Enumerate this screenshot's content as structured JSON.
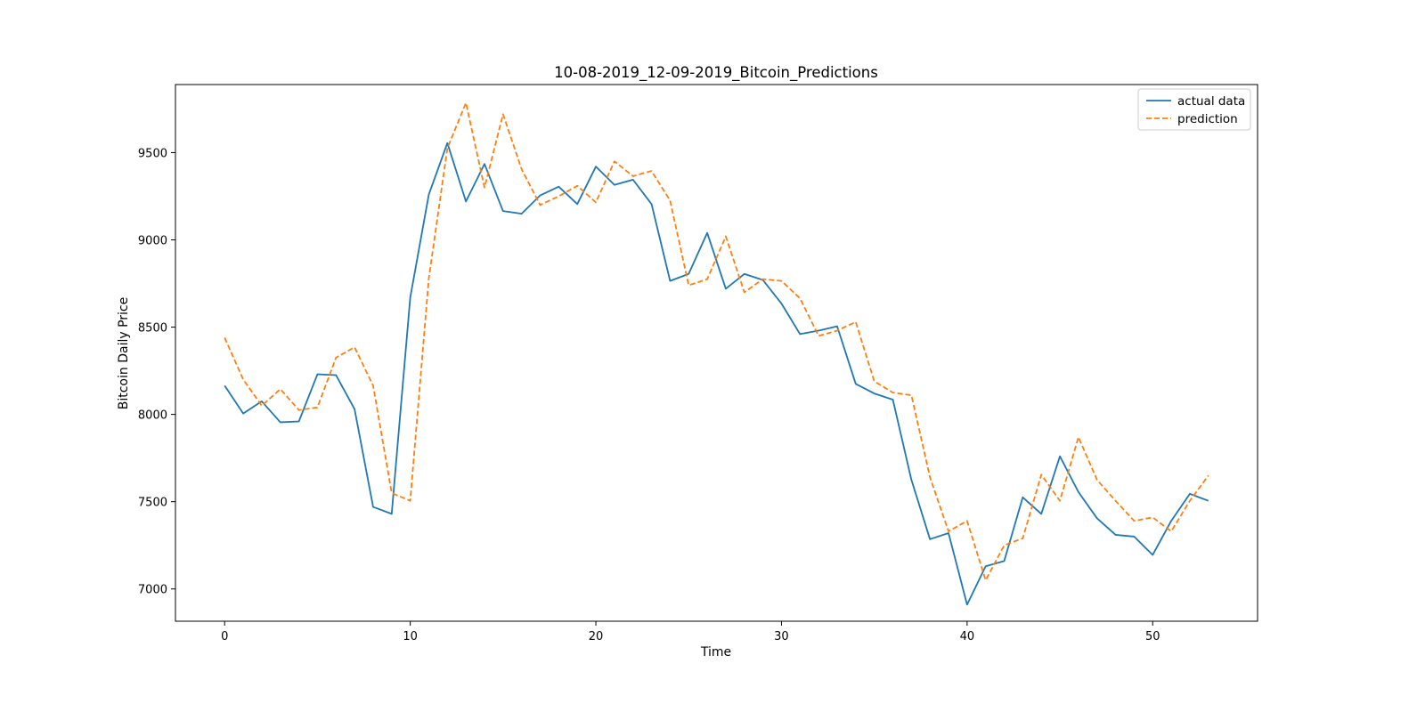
{
  "chart_data": {
    "type": "line",
    "title": "10-08-2019_12-09-2019_Bitcoin_Predictions",
    "xlabel": "Time",
    "ylabel": "Bitcoin Daily Price",
    "xlim": [
      -2.65,
      55.65
    ],
    "ylim": [
      6815,
      9890
    ],
    "xticks": [
      0,
      10,
      20,
      30,
      40,
      50
    ],
    "yticks": [
      7000,
      7500,
      8000,
      8500,
      9000,
      9500
    ],
    "grid": false,
    "legend_position": "top-right",
    "series": [
      {
        "name": "actual data",
        "color": "#1f77b4",
        "style": "solid",
        "values": [
          8165,
          8005,
          8075,
          7955,
          7960,
          8230,
          8225,
          8030,
          7470,
          7430,
          8670,
          9260,
          9555,
          9220,
          9435,
          9165,
          9150,
          9255,
          9305,
          9205,
          9420,
          9315,
          9345,
          9205,
          8765,
          8805,
          9040,
          8720,
          8805,
          8770,
          8635,
          8460,
          8480,
          8505,
          8175,
          8120,
          8085,
          7625,
          7285,
          7320,
          6910,
          7130,
          7160,
          7525,
          7430,
          7760,
          7555,
          7405,
          7310,
          7300,
          7195,
          7390,
          7545,
          7505
        ]
      },
      {
        "name": "prediction",
        "color": "#ff7f0e",
        "style": "dashed",
        "values": [
          8440,
          8200,
          8050,
          8145,
          8025,
          8040,
          8325,
          8385,
          8165,
          7550,
          7505,
          8780,
          9525,
          9785,
          9300,
          9720,
          9405,
          9200,
          9250,
          9310,
          9215,
          9450,
          9365,
          9395,
          9225,
          8740,
          8775,
          9020,
          8700,
          8775,
          8765,
          8665,
          8450,
          8480,
          8530,
          8190,
          8125,
          8110,
          7640,
          7330,
          7390,
          7050,
          7250,
          7290,
          7655,
          7505,
          7870,
          7625,
          7505,
          7390,
          7410,
          7330,
          7505,
          7650
        ]
      }
    ]
  }
}
